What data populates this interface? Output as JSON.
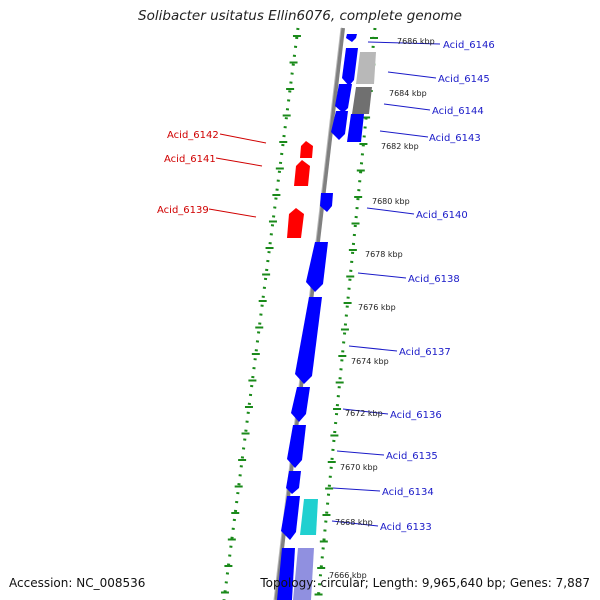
{
  "header": {
    "title": "Solibacter usitatus Ellin6076, complete genome"
  },
  "footer": {
    "accession": "Accession: NC_008536",
    "topology": "Topology: circular; Length: 9,965,640 bp; Genes: 7,887"
  },
  "colors": {
    "forward_gene": "#0000ff",
    "reverse_gene": "#ff0000",
    "gray_feature": "#b0b0b0",
    "dark_gray_feature": "#707070",
    "cyan_feature": "#20d0d0",
    "lavender_feature": "#9090e0",
    "backbone": "#808080",
    "tick_green": "#1a8a1a",
    "forward_label": "#1a1ac8",
    "reverse_label": "#d00000"
  },
  "chart_data": {
    "type": "genome-map",
    "kbp_ticks": [
      "7686 kbp",
      "7684 kbp",
      "7682 kbp",
      "7680 kbp",
      "7678 kbp",
      "7676 kbp",
      "7674 kbp",
      "7672 kbp",
      "7670 kbp",
      "7668 kbp",
      "7666 kbp"
    ],
    "forward_labels": [
      "Acid_6146",
      "Acid_6145",
      "Acid_6144",
      "Acid_6143",
      "Acid_6140",
      "Acid_6138",
      "Acid_6137",
      "Acid_6136",
      "Acid_6135",
      "Acid_6134",
      "Acid_6133"
    ],
    "reverse_labels": [
      "Acid_6142",
      "Acid_6141",
      "Acid_6139"
    ]
  }
}
